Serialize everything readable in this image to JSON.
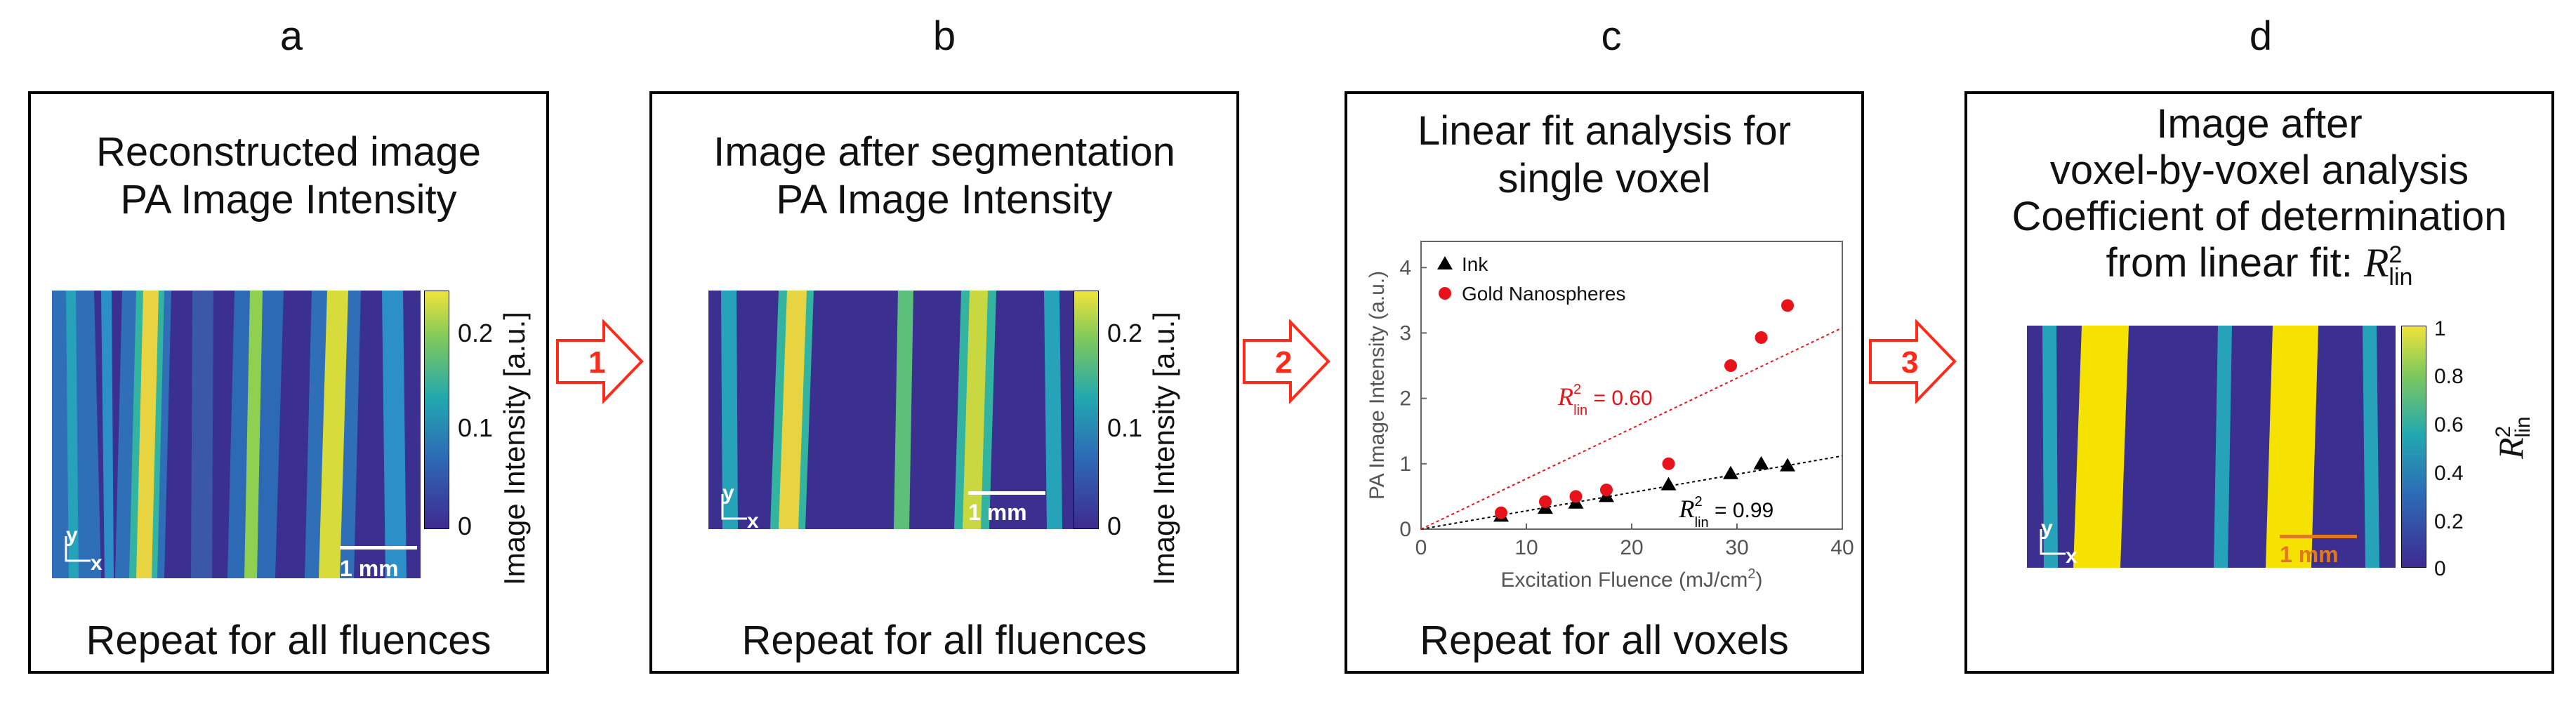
{
  "panels": [
    {
      "letter": "a",
      "title": [
        "Reconstructed image",
        "PA Image Intensity"
      ],
      "footer": "Repeat for all fluences",
      "colorbar": {
        "label": "Image Intensity [a.u.]",
        "ticks": [
          "0.2",
          "0.1",
          "0"
        ]
      },
      "scalebar": "1 mm",
      "axes": {
        "y": "y",
        "x": "x"
      }
    },
    {
      "letter": "b",
      "title": [
        "Image after segmentation",
        "PA Image Intensity"
      ],
      "footer": "Repeat for all fluences",
      "colorbar": {
        "label": "Image Intensity [a.u.]",
        "ticks": [
          "0.2",
          "0.1",
          "0"
        ]
      },
      "scalebar": "1 mm",
      "axes": {
        "y": "y",
        "x": "x"
      }
    },
    {
      "letter": "c",
      "title": [
        "Linear fit analysis for",
        "single voxel"
      ],
      "footer": "Repeat for all voxels"
    },
    {
      "letter": "d",
      "title": [
        "Image after",
        "voxel-by-voxel analysis",
        "Coefficient of determination",
        "from linear fit: "
      ],
      "title_symbol": {
        "base": "R",
        "sup": "2",
        "sub": "lin"
      },
      "footer": "",
      "colorbar": {
        "label_symbol": {
          "base": "R",
          "sup": "2",
          "sub": "lin"
        },
        "ticks": [
          "1",
          "0.8",
          "0.6",
          "0.4",
          "0.2",
          "0"
        ]
      },
      "scalebar": "1 mm",
      "axes": {
        "y": "y",
        "x": "x"
      }
    }
  ],
  "arrows": [
    "1",
    "2",
    "3"
  ],
  "colors": {
    "arrow": "#ff2a1a",
    "ink": "#000000",
    "gold": "#e8121a"
  },
  "chart_data": {
    "type": "scatter",
    "xlabel": "Excitation Fluence (mJ/cm",
    "xlabel_sup": "2",
    "xlabel_close": ")",
    "ylabel": "PA Image Intensity (a.u.)",
    "xlim": [
      0,
      40
    ],
    "ylim": [
      0,
      4.4
    ],
    "xticks": [
      0,
      10,
      20,
      30,
      40
    ],
    "yticks": [
      0,
      1,
      2,
      3,
      4
    ],
    "legend_position": "top-left",
    "series": [
      {
        "name": "Ink",
        "marker": "triangle",
        "color": "#000000",
        "x": [
          7.6,
          11.8,
          14.7,
          17.6,
          23.5,
          29.4,
          32.3,
          34.8
        ],
        "y": [
          0.2,
          0.32,
          0.4,
          0.5,
          0.68,
          0.85,
          1.0,
          0.97
        ],
        "fit": {
          "slope": 0.028,
          "intercept": 0.0,
          "label": " = 0.99"
        }
      },
      {
        "name": "Gold Nanospheres",
        "marker": "circle",
        "color": "#e8121a",
        "x": [
          7.6,
          11.8,
          14.7,
          17.6,
          23.5,
          29.4,
          32.3,
          34.8
        ],
        "y": [
          0.25,
          0.42,
          0.5,
          0.6,
          1.0,
          2.5,
          2.93,
          3.42
        ],
        "fit": {
          "slope": 0.077,
          "intercept": 0.0,
          "label": " = 0.60"
        }
      }
    ],
    "fit_symbol": {
      "base": "R",
      "sup": "2",
      "sub": "lin"
    }
  }
}
